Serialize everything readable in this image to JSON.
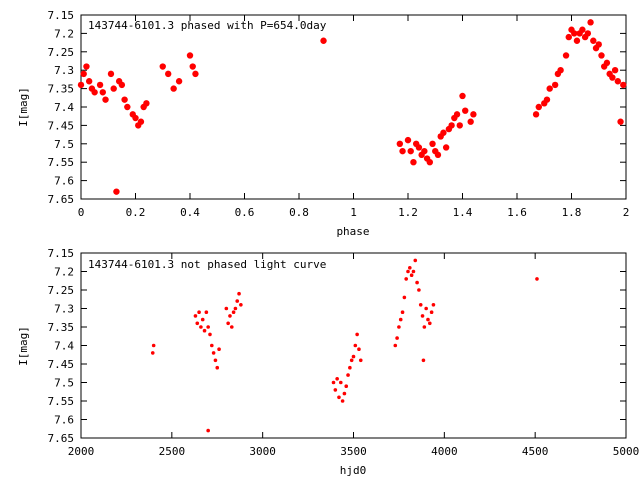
{
  "chart_data": [
    {
      "type": "scatter",
      "title": "143744-6101.3 phased with P=654.0day",
      "xlabel": "phase",
      "ylabel": "I[mag]",
      "xlim": [
        0,
        2
      ],
      "ylim": [
        7.15,
        7.65
      ],
      "y_inverted": true,
      "x_ticks": [
        "0",
        "0.2",
        "0.4",
        "0.6",
        "0.8",
        "1",
        "1.2",
        "1.4",
        "1.6",
        "1.8",
        "2"
      ],
      "y_ticks": [
        "7.15",
        "7.2",
        "7.25",
        "7.3",
        "7.35",
        "7.4",
        "7.45",
        "7.5",
        "7.55",
        "7.6",
        "7.65"
      ],
      "grid": false,
      "marker_color": "#ff0000",
      "series": [
        {
          "x": [
            0.0,
            0.01,
            0.02,
            0.03,
            0.04,
            0.05,
            0.07,
            0.08,
            0.09,
            0.11,
            0.12,
            0.14,
            0.15,
            0.16,
            0.17,
            0.19,
            0.2,
            0.21,
            0.22,
            0.23,
            0.24,
            0.13,
            0.3,
            0.32,
            0.34,
            0.36,
            0.4,
            0.41,
            0.42,
            0.89,
            1.17,
            1.18,
            1.2,
            1.21,
            1.22,
            1.23,
            1.24,
            1.25,
            1.26,
            1.27,
            1.28,
            1.29,
            1.3,
            1.31,
            1.32,
            1.33,
            1.34,
            1.35,
            1.36,
            1.37,
            1.38,
            1.39,
            1.4,
            1.41,
            1.43,
            1.44,
            1.67,
            1.68,
            1.7,
            1.71,
            1.72,
            1.74,
            1.75,
            1.76,
            1.78,
            1.79,
            1.8,
            1.81,
            1.82,
            1.83,
            1.84,
            1.85,
            1.86,
            1.87,
            1.88,
            1.89,
            1.9,
            1.91,
            1.92,
            1.93,
            1.94,
            1.95,
            1.96,
            1.97,
            1.98,
            1.99
          ],
          "y": [
            7.34,
            7.31,
            7.29,
            7.33,
            7.35,
            7.36,
            7.34,
            7.36,
            7.38,
            7.31,
            7.35,
            7.33,
            7.34,
            7.38,
            7.4,
            7.42,
            7.43,
            7.45,
            7.44,
            7.4,
            7.39,
            7.63,
            7.29,
            7.31,
            7.35,
            7.33,
            7.26,
            7.29,
            7.31,
            7.22,
            7.5,
            7.52,
            7.49,
            7.52,
            7.55,
            7.5,
            7.51,
            7.53,
            7.52,
            7.54,
            7.55,
            7.5,
            7.52,
            7.53,
            7.48,
            7.47,
            7.51,
            7.46,
            7.45,
            7.43,
            7.42,
            7.45,
            7.37,
            7.41,
            7.44,
            7.42,
            7.42,
            7.4,
            7.39,
            7.38,
            7.35,
            7.34,
            7.31,
            7.3,
            7.26,
            7.21,
            7.19,
            7.2,
            7.22,
            7.2,
            7.19,
            7.21,
            7.2,
            7.17,
            7.22,
            7.24,
            7.23,
            7.26,
            7.29,
            7.28,
            7.31,
            7.32,
            7.3,
            7.33,
            7.44,
            7.34
          ]
        }
      ]
    },
    {
      "type": "scatter",
      "title": "143744-6101.3 not phased light curve",
      "xlabel": "hjd0",
      "ylabel": "I[mag]",
      "xlim": [
        2000,
        5000
      ],
      "ylim": [
        7.15,
        7.65
      ],
      "y_inverted": true,
      "x_ticks": [
        "2000",
        "2500",
        "3000",
        "3500",
        "4000",
        "4500",
        "5000"
      ],
      "y_ticks": [
        "7.15",
        "7.2",
        "7.25",
        "7.3",
        "7.35",
        "7.4",
        "7.45",
        "7.5",
        "7.55",
        "7.6",
        "7.65"
      ],
      "grid": false,
      "marker_color": "#ff0000",
      "series": [
        {
          "x": [
            2395,
            2400,
            2630,
            2640,
            2650,
            2660,
            2670,
            2680,
            2690,
            2700,
            2710,
            2720,
            2730,
            2740,
            2750,
            2760,
            2700,
            2800,
            2810,
            2820,
            2830,
            2840,
            2850,
            2860,
            2870,
            2880,
            3390,
            3400,
            3410,
            3420,
            3430,
            3440,
            3450,
            3460,
            3470,
            3480,
            3490,
            3500,
            3510,
            3520,
            3530,
            3540,
            3730,
            3740,
            3750,
            3760,
            3770,
            3780,
            3790,
            3800,
            3810,
            3820,
            3830,
            3840,
            3850,
            3860,
            3870,
            3880,
            3890,
            3900,
            3910,
            3920,
            3930,
            3940,
            3885,
            4510
          ],
          "y": [
            7.42,
            7.4,
            7.32,
            7.34,
            7.31,
            7.35,
            7.33,
            7.36,
            7.31,
            7.35,
            7.37,
            7.4,
            7.42,
            7.44,
            7.46,
            7.41,
            7.63,
            7.3,
            7.34,
            7.32,
            7.35,
            7.31,
            7.3,
            7.28,
            7.26,
            7.29,
            7.5,
            7.52,
            7.49,
            7.54,
            7.5,
            7.55,
            7.53,
            7.51,
            7.48,
            7.46,
            7.44,
            7.43,
            7.4,
            7.37,
            7.41,
            7.44,
            7.4,
            7.38,
            7.35,
            7.33,
            7.31,
            7.27,
            7.22,
            7.2,
            7.19,
            7.21,
            7.2,
            7.17,
            7.23,
            7.25,
            7.29,
            7.32,
            7.35,
            7.3,
            7.33,
            7.34,
            7.31,
            7.29,
            7.44,
            7.22
          ]
        }
      ]
    }
  ]
}
